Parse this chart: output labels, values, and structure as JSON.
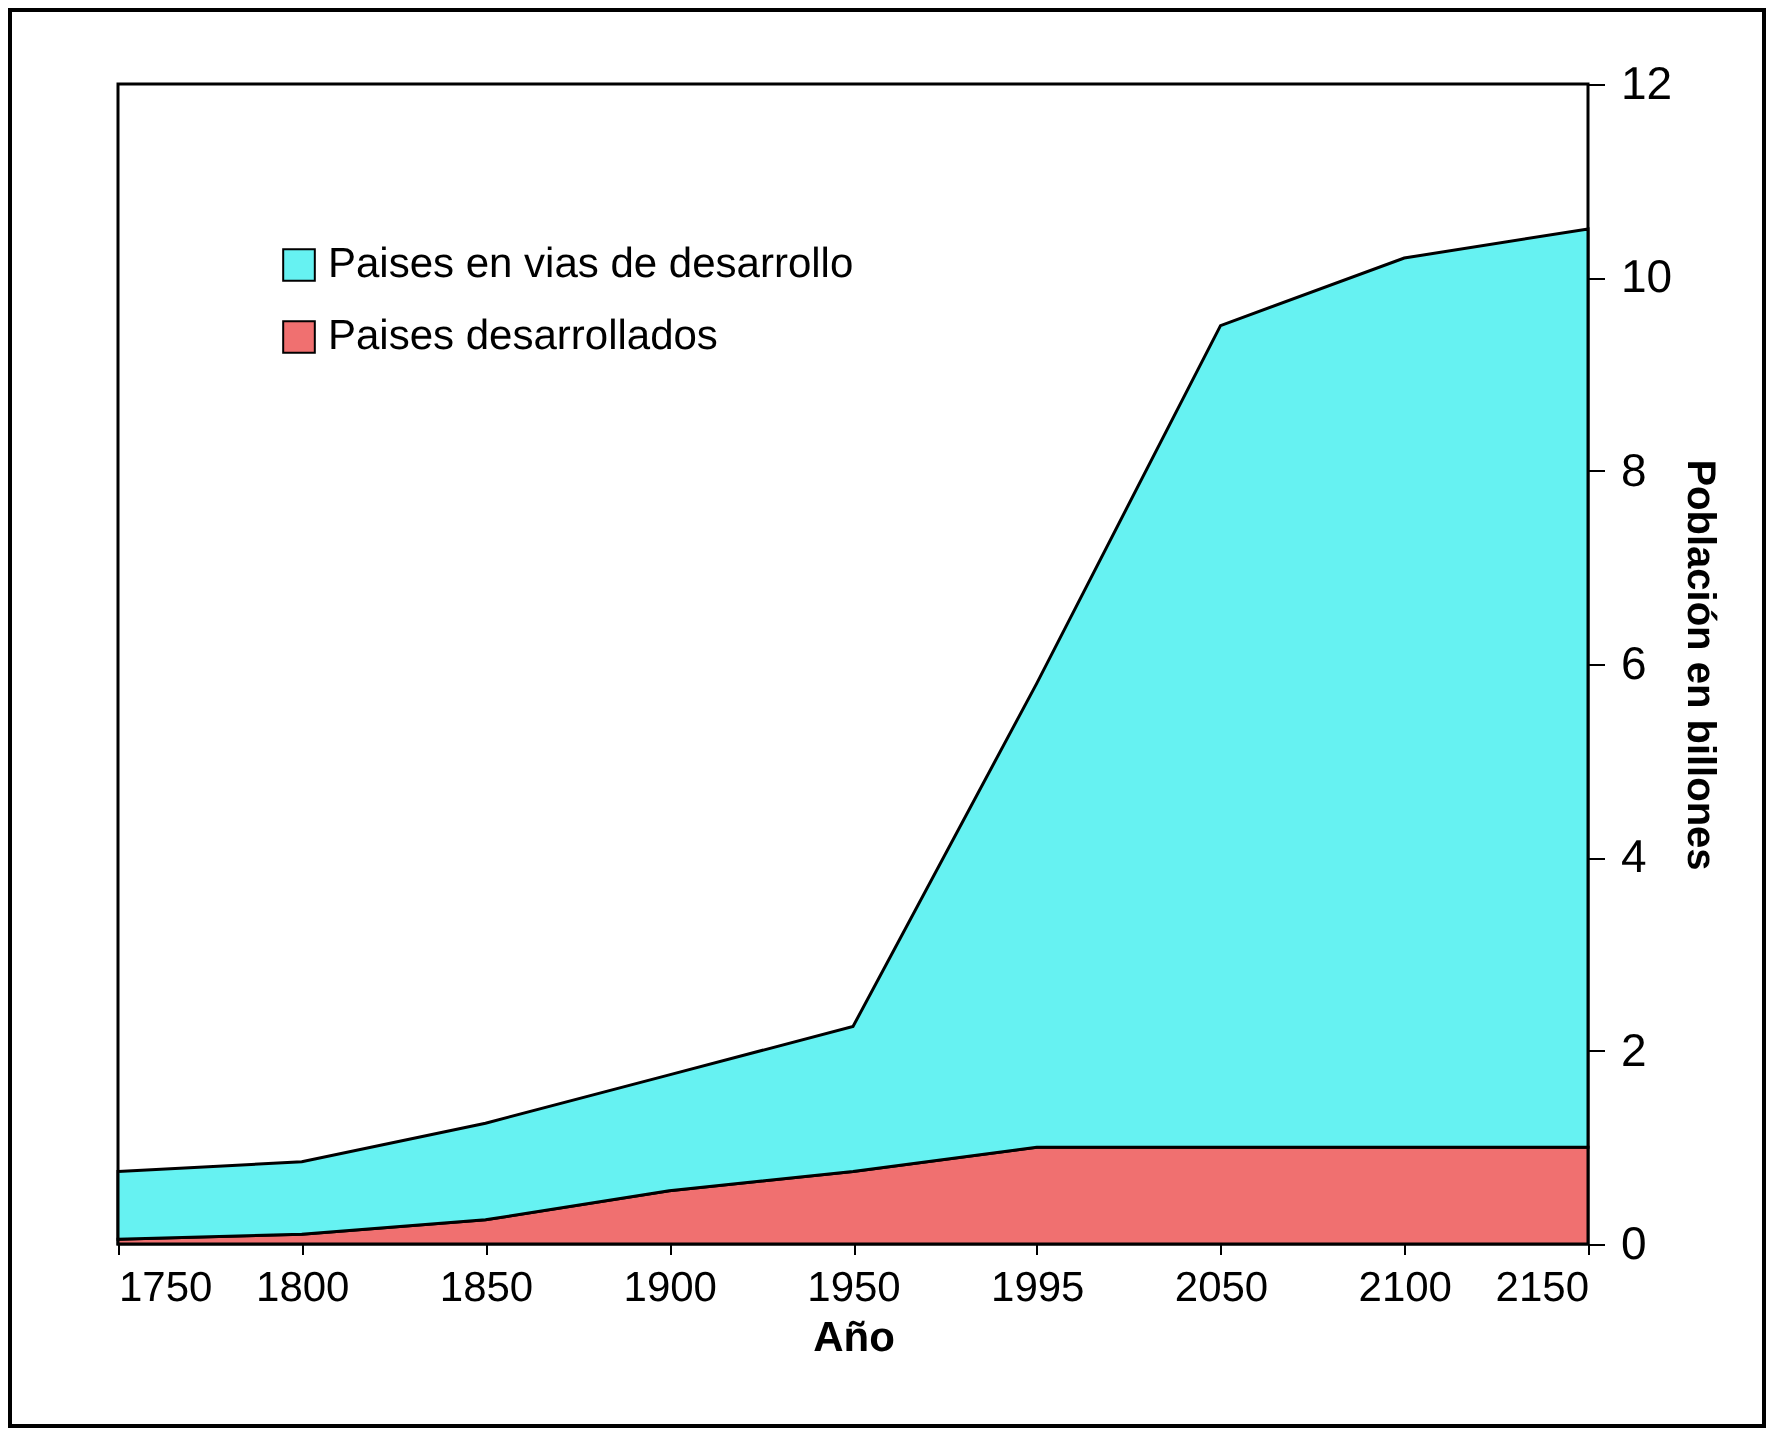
{
  "chart_data": {
    "type": "area",
    "stacked": true,
    "xlabel": "Año",
    "ylabel": "Población en billones",
    "categories": [
      "1750",
      "1800",
      "1850",
      "1900",
      "1950",
      "1995",
      "2050",
      "2100",
      "2150"
    ],
    "series": [
      {
        "name": "Paises desarrollados",
        "color": "#f07070",
        "values": [
          0.05,
          0.1,
          0.25,
          0.55,
          0.75,
          1.0,
          1.0,
          1.0,
          1.0
        ]
      },
      {
        "name": "Paises en vias de desarrollo",
        "color": "#66f2f2",
        "values": [
          0.7,
          0.75,
          1.0,
          1.2,
          1.5,
          4.8,
          8.5,
          9.2,
          9.5
        ]
      }
    ],
    "ylim": [
      0,
      12
    ],
    "yticks": [
      0,
      2,
      4,
      6,
      8,
      10,
      12
    ],
    "legend": "top left",
    "grid": false
  }
}
